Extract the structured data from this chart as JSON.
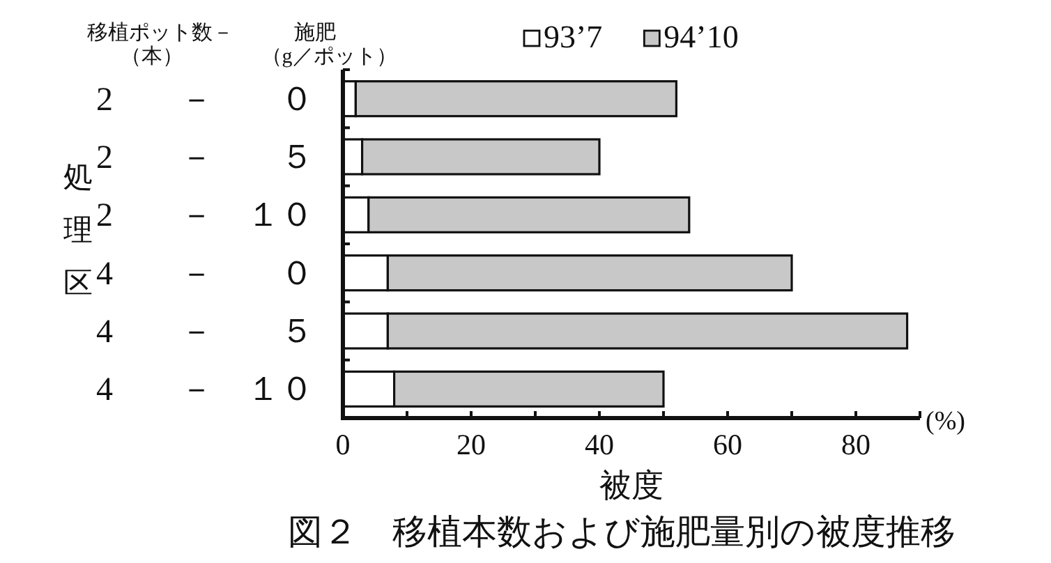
{
  "chart_data": {
    "type": "bar",
    "orientation": "horizontal",
    "stacked": true,
    "title": "図２　移植本数および施肥量別の被度推移",
    "xlabel": "被度",
    "ylabel": "処理区",
    "categories": [
      "2　　－　　０",
      "2　　－　　５",
      "2　　－　１０",
      "4　　－　　０",
      "4　　－　　５",
      "4　　－　１０"
    ],
    "series": [
      {
        "name": "93’7",
        "color": "#ffffff",
        "values": [
          2,
          3,
          4,
          7,
          7,
          8
        ]
      },
      {
        "name": "94’10",
        "color": "#c8c8c8",
        "values": [
          50,
          37,
          50,
          63,
          81,
          42
        ]
      }
    ],
    "xlim": [
      0,
      90
    ],
    "xticks": [
      0,
      {
        "value": 10,
        "label": null
      },
      20,
      {
        "value": 30,
        "label": null
      },
      40,
      {
        "value": 50,
        "label": null
      },
      60,
      {
        "value": 70,
        "label": null
      },
      80,
      {
        "value": 90,
        "label": null
      }
    ],
    "legend": "top",
    "annotations": [
      "移植ポット数－",
      "（本）",
      "施肥",
      "（g／ポット）",
      "(%)"
    ]
  }
}
